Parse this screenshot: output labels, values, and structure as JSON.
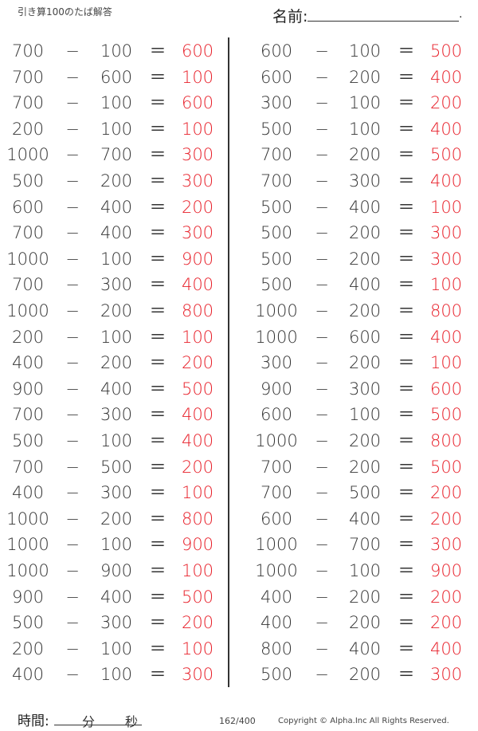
{
  "header": {
    "title": "引き算100のたば解答",
    "name_label": "名前:",
    "name_end": "."
  },
  "minus": "−",
  "equals": "＝",
  "left": [
    [
      "700",
      "100",
      "600"
    ],
    [
      "700",
      "600",
      "100"
    ],
    [
      "700",
      "100",
      "600"
    ],
    [
      "200",
      "100",
      "100"
    ],
    [
      "1000",
      "700",
      "300"
    ],
    [
      "500",
      "200",
      "300"
    ],
    [
      "600",
      "400",
      "200"
    ],
    [
      "700",
      "400",
      "300"
    ],
    [
      "1000",
      "100",
      "900"
    ],
    [
      "700",
      "300",
      "400"
    ],
    [
      "1000",
      "200",
      "800"
    ],
    [
      "200",
      "100",
      "100"
    ],
    [
      "400",
      "200",
      "200"
    ],
    [
      "900",
      "400",
      "500"
    ],
    [
      "700",
      "300",
      "400"
    ],
    [
      "500",
      "100",
      "400"
    ],
    [
      "700",
      "500",
      "200"
    ],
    [
      "400",
      "300",
      "100"
    ],
    [
      "1000",
      "200",
      "800"
    ],
    [
      "1000",
      "100",
      "900"
    ],
    [
      "1000",
      "900",
      "100"
    ],
    [
      "900",
      "400",
      "500"
    ],
    [
      "500",
      "300",
      "200"
    ],
    [
      "200",
      "100",
      "100"
    ],
    [
      "400",
      "100",
      "300"
    ]
  ],
  "right": [
    [
      "600",
      "100",
      "500"
    ],
    [
      "600",
      "200",
      "400"
    ],
    [
      "300",
      "100",
      "200"
    ],
    [
      "500",
      "100",
      "400"
    ],
    [
      "700",
      "200",
      "500"
    ],
    [
      "700",
      "300",
      "400"
    ],
    [
      "500",
      "400",
      "100"
    ],
    [
      "500",
      "200",
      "300"
    ],
    [
      "500",
      "200",
      "300"
    ],
    [
      "500",
      "400",
      "100"
    ],
    [
      "1000",
      "200",
      "800"
    ],
    [
      "1000",
      "600",
      "400"
    ],
    [
      "300",
      "200",
      "100"
    ],
    [
      "900",
      "300",
      "600"
    ],
    [
      "600",
      "100",
      "500"
    ],
    [
      "1000",
      "200",
      "800"
    ],
    [
      "700",
      "200",
      "500"
    ],
    [
      "700",
      "500",
      "200"
    ],
    [
      "600",
      "400",
      "200"
    ],
    [
      "1000",
      "700",
      "300"
    ],
    [
      "1000",
      "100",
      "900"
    ],
    [
      "400",
      "200",
      "200"
    ],
    [
      "400",
      "200",
      "200"
    ],
    [
      "800",
      "400",
      "400"
    ],
    [
      "500",
      "200",
      "300"
    ]
  ],
  "footer": {
    "time_label": "時間:",
    "minutes": "分",
    "seconds": "秒",
    "page": "162/400",
    "copyright": "Copyright ©  Alpha.Inc All Rights Reserved."
  },
  "colors": {
    "answer": "#e8202a",
    "text": "#333333"
  }
}
